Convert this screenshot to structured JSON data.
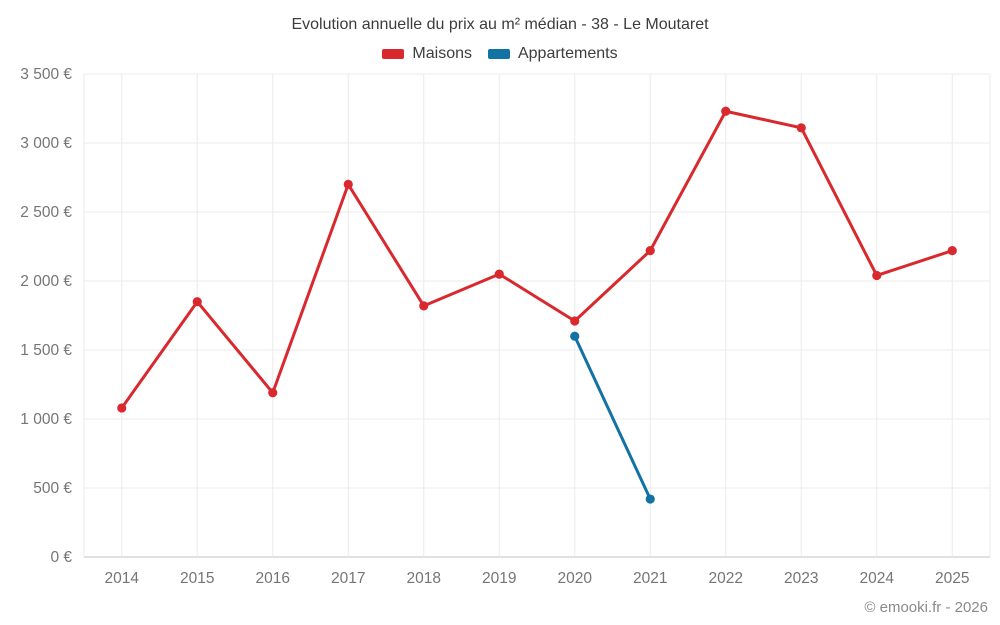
{
  "header": {
    "title": "Evolution annuelle du prix au m² médian - 38 - Le Moutaret"
  },
  "footer": {
    "credit": "© emooki.fr - 2026"
  },
  "colors": {
    "maisons": "#d9292e",
    "appartements": "#1272a4",
    "grid": "#ebebeb",
    "axis_line": "#c2c2c2",
    "tick_label": "#757575",
    "title_text": "#3d3d3d",
    "credit_text": "#8a8a8a"
  },
  "chart_data": {
    "type": "line",
    "title": "Evolution annuelle du prix au m² médian - 38 - Le Moutaret",
    "categories": [
      "2014",
      "2015",
      "2016",
      "2017",
      "2018",
      "2019",
      "2020",
      "2021",
      "2022",
      "2023",
      "2024",
      "2025"
    ],
    "series": [
      {
        "name": "Maisons",
        "color": "#d9292e",
        "values": [
          1080,
          1850,
          1190,
          2700,
          1820,
          2050,
          1710,
          2220,
          3230,
          3110,
          2040,
          2220
        ]
      },
      {
        "name": "Appartements",
        "color": "#1272a4",
        "values": [
          null,
          null,
          null,
          null,
          null,
          null,
          1600,
          420,
          null,
          null,
          null,
          null
        ]
      }
    ],
    "xlabel": "",
    "ylabel": "",
    "ylim": [
      0,
      3500
    ],
    "ytick_step": 500,
    "ytick_labels": [
      "0 €",
      "500 €",
      "1 000 €",
      "1 500 €",
      "2 000 €",
      "2 500 €",
      "3 000 €",
      "3 500 €"
    ],
    "grid": "on",
    "legend_position": "top"
  }
}
